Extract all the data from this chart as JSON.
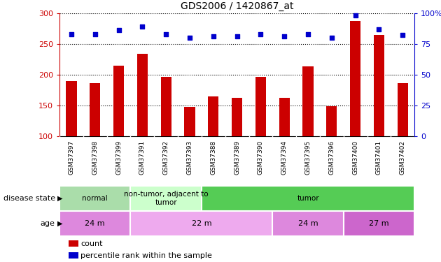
{
  "title": "GDS2006 / 1420867_at",
  "samples": [
    "GSM37397",
    "GSM37398",
    "GSM37399",
    "GSM37391",
    "GSM37392",
    "GSM37393",
    "GSM37388",
    "GSM37389",
    "GSM37390",
    "GSM37394",
    "GSM37395",
    "GSM37396",
    "GSM37400",
    "GSM37401",
    "GSM37402"
  ],
  "counts": [
    190,
    186,
    215,
    234,
    197,
    148,
    165,
    162,
    196,
    162,
    213,
    149,
    287,
    264,
    186
  ],
  "percentiles": [
    83,
    83,
    86,
    89,
    83,
    80,
    81,
    81,
    83,
    81,
    83,
    80,
    98,
    87,
    82
  ],
  "ylim_left": [
    100,
    300
  ],
  "ylim_right": [
    0,
    100
  ],
  "yticks_left": [
    100,
    150,
    200,
    250,
    300
  ],
  "yticks_right": [
    0,
    25,
    50,
    75,
    100
  ],
  "bar_color": "#cc0000",
  "dot_color": "#0000cc",
  "disease_state_groups": [
    {
      "label": "normal",
      "start": 0,
      "end": 3,
      "color": "#aaddaa"
    },
    {
      "label": "non-tumor, adjacent to\ntumor",
      "start": 3,
      "end": 6,
      "color": "#ccffcc"
    },
    {
      "label": "tumor",
      "start": 6,
      "end": 15,
      "color": "#55cc55"
    }
  ],
  "age_groups": [
    {
      "label": "24 m",
      "start": 0,
      "end": 3,
      "color": "#dd88dd"
    },
    {
      "label": "22 m",
      "start": 3,
      "end": 9,
      "color": "#eeaaee"
    },
    {
      "label": "24 m",
      "start": 9,
      "end": 12,
      "color": "#dd88dd"
    },
    {
      "label": "27 m",
      "start": 12,
      "end": 15,
      "color": "#cc66cc"
    }
  ],
  "legend_count_label": "count",
  "legend_pct_label": "percentile rank within the sample",
  "xlabel_disease": "disease state",
  "xlabel_age": "age",
  "background_color": "#ffffff",
  "plot_bg_color": "#ffffff",
  "tick_area_bg": "#cccccc",
  "grid_color": "#000000"
}
